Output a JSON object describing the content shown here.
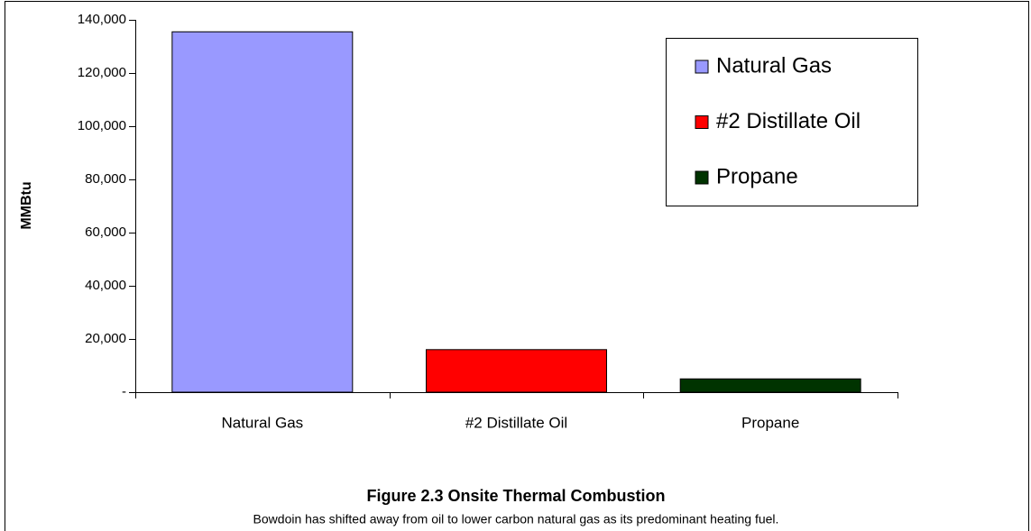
{
  "chart_data": {
    "type": "bar",
    "title": "Figure 2.3 Onsite Thermal Combustion",
    "subtitle": "Bowdoin has shifted away from oil to lower carbon natural gas as its predominant heating fuel.",
    "y_label": "MMBtu",
    "categories": [
      "Natural Gas",
      "#2 Distillate Oil",
      "Propane"
    ],
    "values": [
      135500,
      16000,
      5000
    ],
    "colors": [
      "#9999ff",
      "#ff0000",
      "#003300"
    ],
    "ylim": [
      0,
      140000
    ],
    "yticks": [
      {
        "value": 0,
        "label": "-"
      },
      {
        "value": 20000,
        "label": "20,000"
      },
      {
        "value": 40000,
        "label": "40,000"
      },
      {
        "value": 60000,
        "label": "60,000"
      },
      {
        "value": 80000,
        "label": "80,000"
      },
      {
        "value": 100000,
        "label": "100,000"
      },
      {
        "value": 120000,
        "label": "120,000"
      },
      {
        "value": 140000,
        "label": "140,000"
      }
    ],
    "legend": "top-right"
  }
}
